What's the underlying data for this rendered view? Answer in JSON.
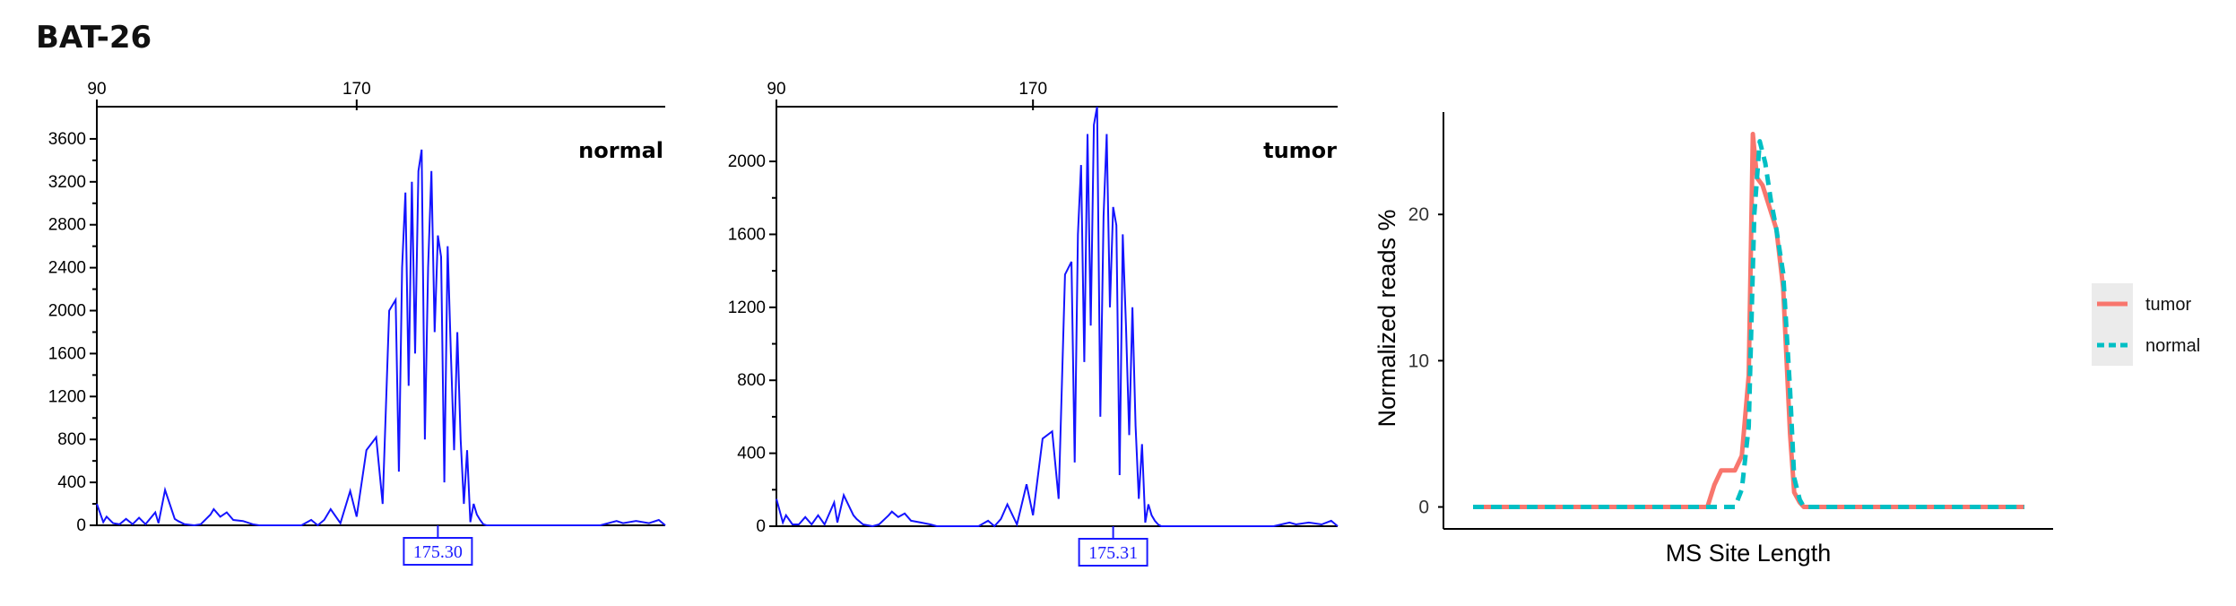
{
  "figure_title": "BAT-26",
  "chart_data": [
    {
      "type": "line",
      "panel_label": "normal",
      "x_ticks": [
        90,
        170
      ],
      "xlim": [
        90,
        265
      ],
      "y_ticks": [
        0,
        400,
        800,
        1200,
        1600,
        2000,
        2400,
        2800,
        3200,
        3600
      ],
      "ylim": [
        0,
        3900
      ],
      "peak_label": "175.30",
      "peak_x": 195,
      "color": "#1414ff",
      "x": [
        90,
        92,
        93,
        95,
        97,
        99,
        101,
        103,
        105,
        108,
        109,
        111,
        114,
        115,
        117,
        120,
        122,
        125,
        126,
        128,
        130,
        132,
        135,
        138,
        140,
        143,
        145,
        150,
        153,
        156,
        158,
        160,
        162,
        165,
        168,
        170,
        173,
        176,
        178,
        180,
        182,
        183,
        184,
        185,
        186,
        187,
        188,
        189,
        190,
        191,
        192,
        193,
        194,
        195,
        196,
        197,
        198,
        199,
        200,
        201,
        202,
        203,
        204,
        205,
        206,
        207,
        208,
        209,
        210,
        211,
        212,
        213,
        214,
        215,
        216,
        217,
        220,
        224,
        230,
        245,
        250,
        252,
        256,
        260,
        263,
        265
      ],
      "y": [
        200,
        30,
        80,
        20,
        10,
        60,
        10,
        70,
        10,
        120,
        20,
        330,
        60,
        40,
        10,
        0,
        10,
        100,
        150,
        80,
        120,
        50,
        40,
        10,
        0,
        0,
        0,
        0,
        0,
        50,
        0,
        50,
        150,
        20,
        320,
        80,
        700,
        820,
        200,
        2000,
        2100,
        500,
        2400,
        3100,
        1300,
        3200,
        1600,
        3300,
        3500,
        800,
        2400,
        3300,
        1800,
        2700,
        2500,
        400,
        2600,
        1600,
        700,
        1800,
        800,
        200,
        700,
        30,
        200,
        100,
        50,
        10,
        0,
        0,
        0,
        0,
        0,
        0,
        0,
        0,
        0,
        0,
        0,
        0,
        40,
        20,
        40,
        20,
        50,
        0
      ]
    },
    {
      "type": "line",
      "panel_label": "tumor",
      "x_ticks": [
        90,
        170
      ],
      "xlim": [
        90,
        265
      ],
      "y_ticks": [
        0,
        400,
        800,
        1200,
        1600,
        2000
      ],
      "ylim": [
        0,
        2300
      ],
      "peak_label": "175.31",
      "peak_x": 195,
      "color": "#1414ff",
      "x": [
        90,
        92,
        93,
        95,
        97,
        99,
        101,
        103,
        105,
        108,
        109,
        111,
        114,
        115,
        117,
        120,
        122,
        125,
        126,
        128,
        130,
        132,
        135,
        138,
        140,
        143,
        145,
        150,
        153,
        156,
        158,
        160,
        162,
        165,
        168,
        170,
        173,
        176,
        178,
        180,
        182,
        183,
        184,
        185,
        186,
        187,
        188,
        189,
        190,
        191,
        192,
        193,
        194,
        195,
        196,
        197,
        198,
        199,
        200,
        201,
        202,
        203,
        204,
        205,
        206,
        207,
        208,
        209,
        210,
        211,
        212,
        213,
        214,
        215,
        216,
        217,
        220,
        224,
        230,
        245,
        250,
        252,
        256,
        260,
        263,
        265
      ],
      "y": [
        150,
        20,
        60,
        10,
        10,
        50,
        10,
        60,
        10,
        130,
        20,
        170,
        60,
        40,
        10,
        0,
        10,
        60,
        80,
        50,
        70,
        30,
        20,
        10,
        0,
        0,
        0,
        0,
        0,
        30,
        0,
        40,
        120,
        10,
        230,
        60,
        480,
        520,
        150,
        1380,
        1450,
        350,
        1600,
        1980,
        900,
        2150,
        1100,
        2200,
        2300,
        600,
        1700,
        2150,
        1200,
        1750,
        1650,
        280,
        1600,
        1100,
        500,
        1200,
        550,
        150,
        450,
        20,
        120,
        60,
        30,
        10,
        0,
        0,
        0,
        0,
        0,
        0,
        0,
        0,
        0,
        0,
        0,
        0,
        20,
        10,
        20,
        10,
        30,
        0
      ]
    },
    {
      "type": "line",
      "xlabel": "MS Site Length",
      "ylabel": "Normalized reads %",
      "y_ticks": [
        0,
        10,
        20
      ],
      "ylim": [
        -1.5,
        27
      ],
      "xlim": [
        0,
        40
      ],
      "legend_position": "right",
      "series": [
        {
          "name": "tumor",
          "color": "#f8766d",
          "dash": "solid",
          "x": [
            0,
            17,
            17.5,
            18,
            19,
            19.5,
            20,
            20.3,
            20.6,
            21,
            22,
            22.5,
            23,
            23.3,
            23.7,
            24,
            40
          ],
          "y": [
            0,
            0,
            1.5,
            2.5,
            2.5,
            3.5,
            9,
            25.5,
            22.5,
            22,
            19,
            15,
            5,
            1,
            0.3,
            0,
            0
          ]
        },
        {
          "name": "normal",
          "color": "#00bfc4",
          "dash": "dashed",
          "x": [
            0,
            18,
            18.5,
            19,
            19.5,
            20,
            20.4,
            20.8,
            21.2,
            21.6,
            22,
            22.5,
            23,
            23.3,
            23.7,
            24,
            40
          ],
          "y": [
            0,
            0,
            0,
            0,
            1.2,
            5.5,
            20,
            25,
            23.5,
            21,
            19,
            16,
            8,
            2,
            0.5,
            0,
            0
          ]
        }
      ]
    }
  ]
}
